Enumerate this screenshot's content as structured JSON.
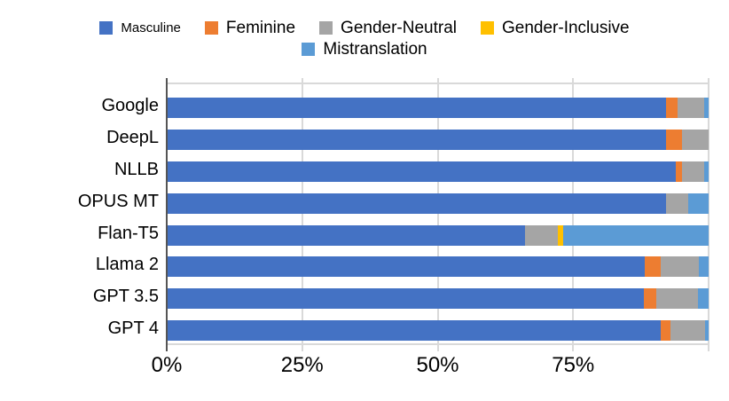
{
  "legend": {
    "rows": [
      [
        {
          "label": "Masculine",
          "color": "#4472C4",
          "small": true
        },
        {
          "label": "Feminine",
          "color": "#ED7D31",
          "small": false
        },
        {
          "label": "Gender-Neutral",
          "color": "#A5A5A5",
          "small": false
        },
        {
          "label": "Gender-Inclusive",
          "color": "#FFC000",
          "small": false
        }
      ],
      [
        {
          "label": "Mistranslation",
          "color": "#5B9BD5",
          "small": false
        }
      ]
    ]
  },
  "chart_data": {
    "type": "bar",
    "orientation": "horizontal",
    "stacked": true,
    "title": "",
    "xlabel": "",
    "ylabel": "",
    "xlim": [
      0,
      100
    ],
    "grid": "vertical",
    "legend_position": "top",
    "categories": [
      "Google",
      "DeepL",
      "NLLB",
      "OPUS MT",
      "Flan-T5",
      "Llama 2",
      "GPT 3.5",
      "GPT 4"
    ],
    "series": [
      {
        "name": "Masculine",
        "color": "#4472C4",
        "values": [
          92.2,
          92.1,
          94.0,
          92.2,
          66.2,
          88.2,
          88.1,
          91.1
        ]
      },
      {
        "name": "Feminine",
        "color": "#ED7D31",
        "values": [
          2.1,
          3.0,
          1.1,
          0,
          0,
          2.9,
          2.2,
          1.8
        ]
      },
      {
        "name": "Gender-Neutral",
        "color": "#A5A5A5",
        "values": [
          4.9,
          4.9,
          4.1,
          4.0,
          5.9,
          7.1,
          7.8,
          6.4
        ]
      },
      {
        "name": "Gender-Inclusive",
        "color": "#FFC000",
        "values": [
          0,
          0,
          0,
          0,
          1.1,
          0,
          0,
          0
        ]
      },
      {
        "name": "Mistranslation",
        "color": "#5B9BD5",
        "values": [
          0.8,
          0,
          0.8,
          3.8,
          26.8,
          1.8,
          1.9,
          0.7
        ]
      }
    ],
    "xticks": [
      {
        "pos": 0,
        "label": "0%"
      },
      {
        "pos": 25,
        "label": "25%"
      },
      {
        "pos": 50,
        "label": "50%"
      },
      {
        "pos": 75,
        "label": "75%"
      },
      {
        "pos": 100,
        "label": ""
      }
    ]
  },
  "colors": {
    "background": "#FFFFFF",
    "gridline": "#D9D9D9",
    "axis_zero_line": "#555555",
    "text": "#000000"
  }
}
